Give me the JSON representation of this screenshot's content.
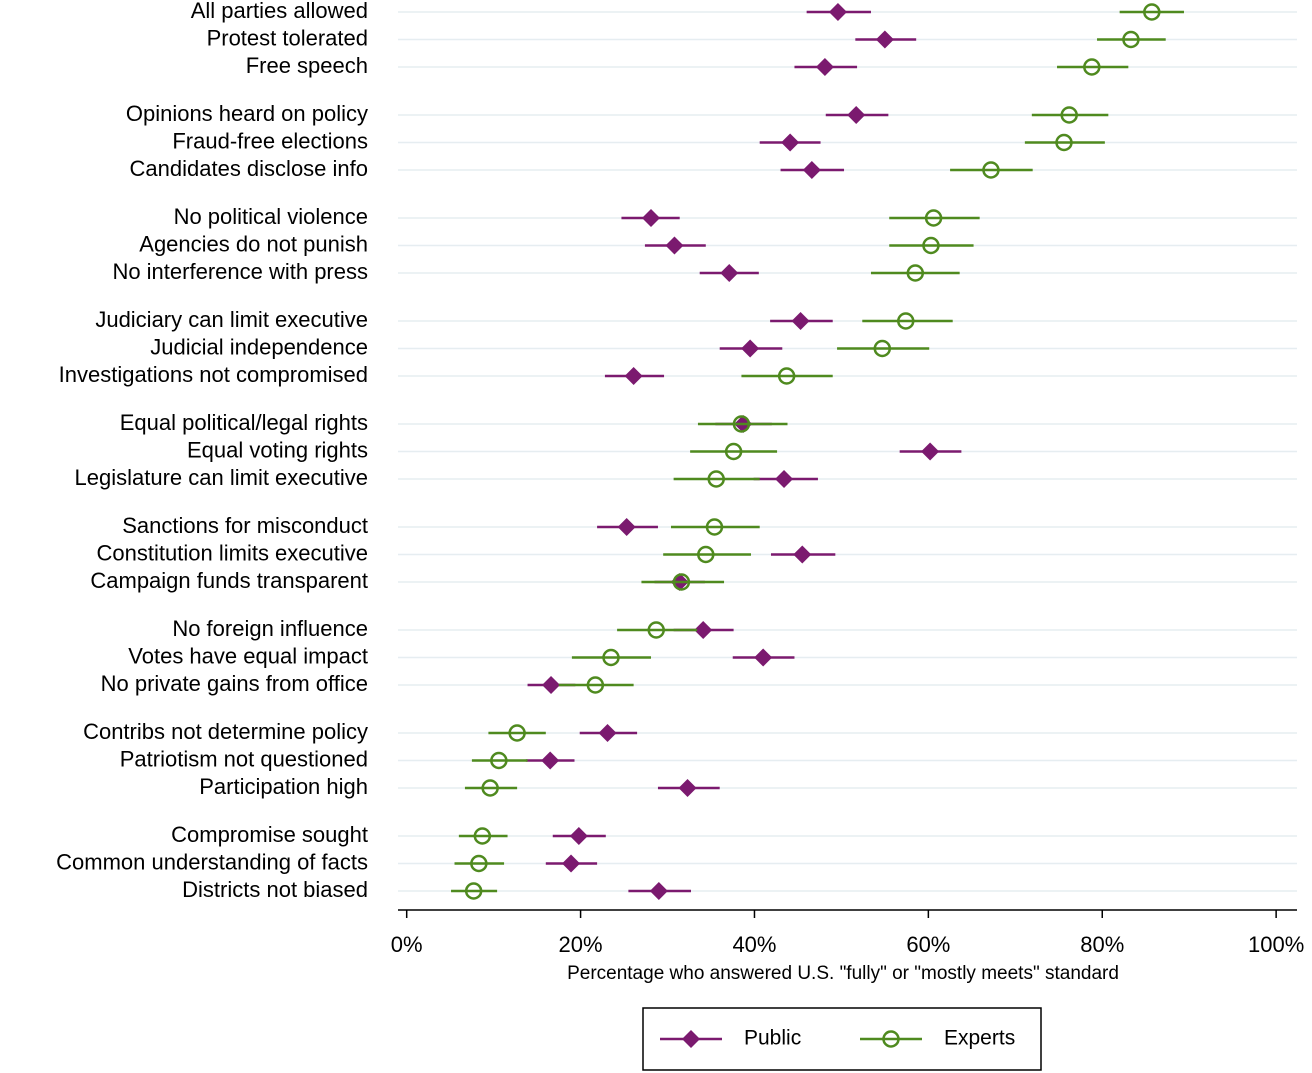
{
  "chart_data": {
    "type": "dot-errorbar",
    "categories": [
      "All parties allowed",
      "Protest tolerated",
      "Free speech",
      "Opinions heard on policy",
      "Fraud-free elections",
      "Candidates disclose info",
      "No political violence",
      "Agencies do not punish",
      "No interference with press",
      "Judiciary can limit executive",
      "Judicial independence",
      "Investigations not compromised",
      "Equal political/legal rights",
      "Equal voting rights",
      "Legislature can limit executive",
      "Sanctions for misconduct",
      "Constitution limits executive",
      "Campaign funds transparent",
      "No foreign influence",
      "Votes have equal impact",
      "No private gains from office",
      "Contribs not determine policy",
      "Patriotism not questioned",
      "Participation high",
      "Compromise sought",
      "Common understanding of facts",
      "Districts not biased"
    ],
    "series": [
      {
        "name": "Public",
        "color": "#7b1a6f",
        "marker": "diamond",
        "values": [
          49.6,
          55.0,
          48.1,
          51.7,
          44.1,
          46.6,
          28.1,
          30.8,
          37.1,
          45.3,
          39.5,
          26.1,
          38.7,
          60.2,
          43.4,
          25.3,
          45.5,
          31.4,
          34.1,
          41.0,
          16.6,
          23.1,
          16.5,
          32.3,
          19.8,
          18.9,
          29.0
        ],
        "low": [
          46.0,
          51.6,
          44.6,
          48.2,
          40.6,
          43.0,
          24.7,
          27.4,
          33.7,
          41.8,
          36.0,
          22.8,
          35.5,
          56.7,
          39.9,
          21.9,
          41.9,
          28.5,
          30.7,
          37.5,
          13.9,
          19.9,
          13.7,
          28.9,
          16.8,
          16.0,
          25.5
        ],
        "high": [
          53.4,
          58.6,
          51.8,
          55.4,
          47.6,
          50.3,
          31.4,
          34.4,
          40.5,
          49.0,
          43.2,
          29.6,
          42.0,
          63.8,
          47.3,
          28.9,
          49.3,
          34.3,
          37.6,
          44.6,
          19.4,
          26.5,
          19.3,
          36.0,
          22.9,
          21.9,
          32.7
        ]
      },
      {
        "name": "Experts",
        "color": "#4f8a1f",
        "marker": "circle",
        "values": [
          85.7,
          83.3,
          78.8,
          76.2,
          75.6,
          67.2,
          60.6,
          60.3,
          58.5,
          57.4,
          54.7,
          43.7,
          38.5,
          37.6,
          35.6,
          35.4,
          34.4,
          31.6,
          28.7,
          23.5,
          21.7,
          12.7,
          10.6,
          9.6,
          8.7,
          8.3,
          7.7
        ],
        "low": [
          82.0,
          79.4,
          74.8,
          71.9,
          71.1,
          62.5,
          55.5,
          55.5,
          53.4,
          52.4,
          49.5,
          38.5,
          33.5,
          32.6,
          30.7,
          30.4,
          29.5,
          27.0,
          24.2,
          19.0,
          17.5,
          9.4,
          7.5,
          6.7,
          6.0,
          5.5,
          5.1
        ],
        "high": [
          89.4,
          87.3,
          83.0,
          80.7,
          80.3,
          72.0,
          65.9,
          65.2,
          63.6,
          62.8,
          60.1,
          49.0,
          43.8,
          42.6,
          40.6,
          40.6,
          39.6,
          36.5,
          33.4,
          28.1,
          26.1,
          16.0,
          13.9,
          12.7,
          11.6,
          11.2,
          10.4
        ]
      }
    ],
    "x_label": "Percentage who answered U.S. \"fully\" or \"mostly meets\" standard",
    "xlim": [
      -1,
      102.4
    ],
    "xticks": [
      {
        "value": 0,
        "label": "0%"
      },
      {
        "value": 20,
        "label": "20%"
      },
      {
        "value": 40,
        "label": "40%"
      },
      {
        "value": 60,
        "label": "60%"
      },
      {
        "value": 80,
        "label": "80%"
      },
      {
        "value": 100,
        "label": "100%"
      }
    ],
    "grid": true
  }
}
